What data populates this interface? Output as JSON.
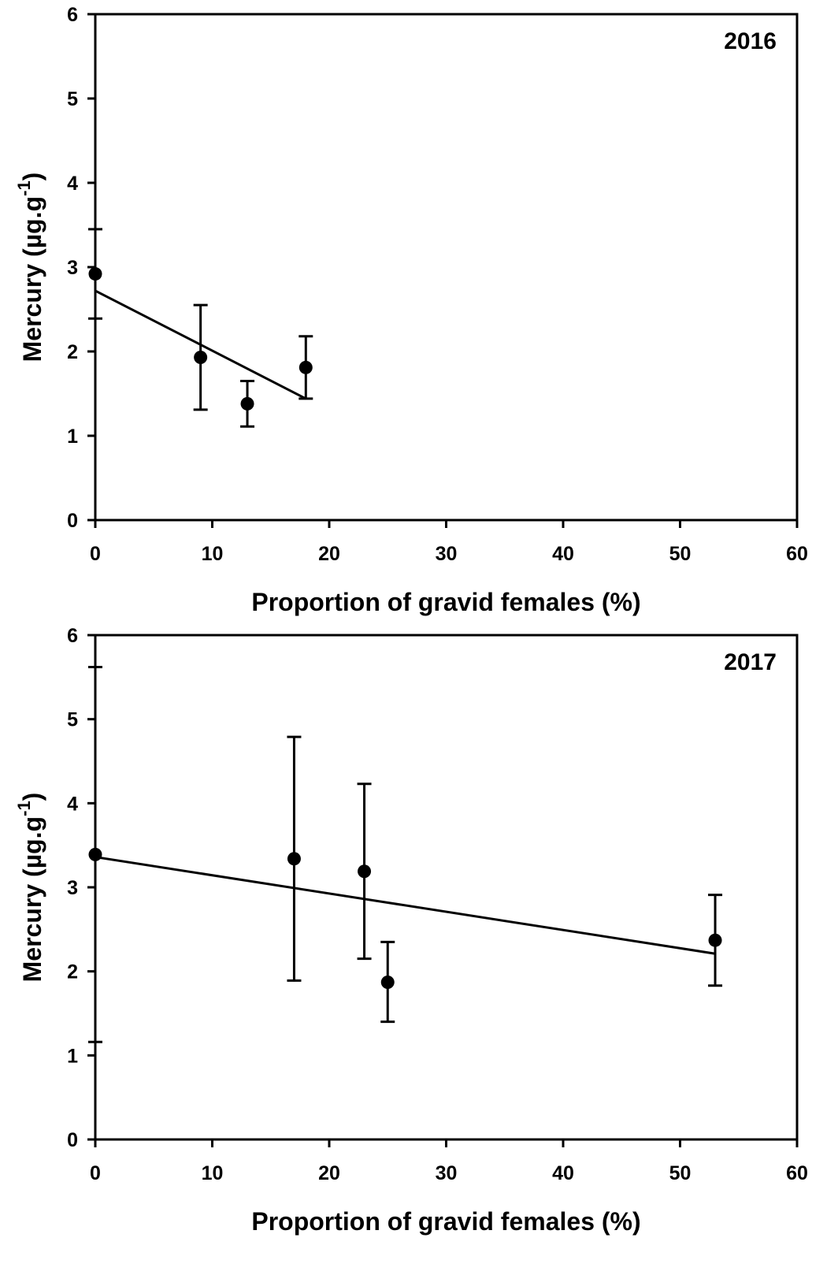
{
  "chart_data": [
    {
      "type": "scatter",
      "panel_label": "2016",
      "xlabel": "Proportion of gravid females (%)",
      "ylabel_main": "Mercury (µg.g",
      "ylabel_sup": "-1",
      "ylabel_close": ")",
      "xlim": [
        0,
        60
      ],
      "ylim": [
        0,
        6
      ],
      "xticks": [
        0,
        10,
        20,
        30,
        40,
        50,
        60
      ],
      "yticks": [
        0,
        1,
        2,
        3,
        4,
        5,
        6
      ],
      "points": [
        {
          "x": 0,
          "y": 2.92,
          "err_low": 2.39,
          "err_high": 3.45
        },
        {
          "x": 9,
          "y": 1.93,
          "err_low": 1.31,
          "err_high": 2.55
        },
        {
          "x": 13,
          "y": 1.38,
          "err_low": 1.11,
          "err_high": 1.65
        },
        {
          "x": 18,
          "y": 1.81,
          "err_low": 1.44,
          "err_high": 2.18
        }
      ],
      "trendline": {
        "x": [
          0,
          18
        ],
        "y": [
          2.72,
          1.44
        ]
      },
      "grid": false
    },
    {
      "type": "scatter",
      "panel_label": "2017",
      "xlabel": "Proportion of gravid females (%)",
      "ylabel_main": "Mercury (µg.g",
      "ylabel_sup": "-1",
      "ylabel_close": ")",
      "xlim": [
        0,
        60
      ],
      "ylim": [
        0,
        6
      ],
      "xticks": [
        0,
        10,
        20,
        30,
        40,
        50,
        60
      ],
      "yticks": [
        0,
        1,
        2,
        3,
        4,
        5,
        6
      ],
      "points": [
        {
          "x": 0,
          "y": 3.39,
          "err_low": 1.16,
          "err_high": 5.62
        },
        {
          "x": 17,
          "y": 3.34,
          "err_low": 1.89,
          "err_high": 4.79
        },
        {
          "x": 23,
          "y": 3.19,
          "err_low": 2.15,
          "err_high": 4.23
        },
        {
          "x": 25,
          "y": 1.87,
          "err_low": 1.4,
          "err_high": 2.35
        },
        {
          "x": 53,
          "y": 2.37,
          "err_low": 1.83,
          "err_high": 2.91
        }
      ],
      "trendline": {
        "x": [
          0,
          53
        ],
        "y": [
          3.36,
          2.21
        ]
      },
      "grid": false
    }
  ]
}
